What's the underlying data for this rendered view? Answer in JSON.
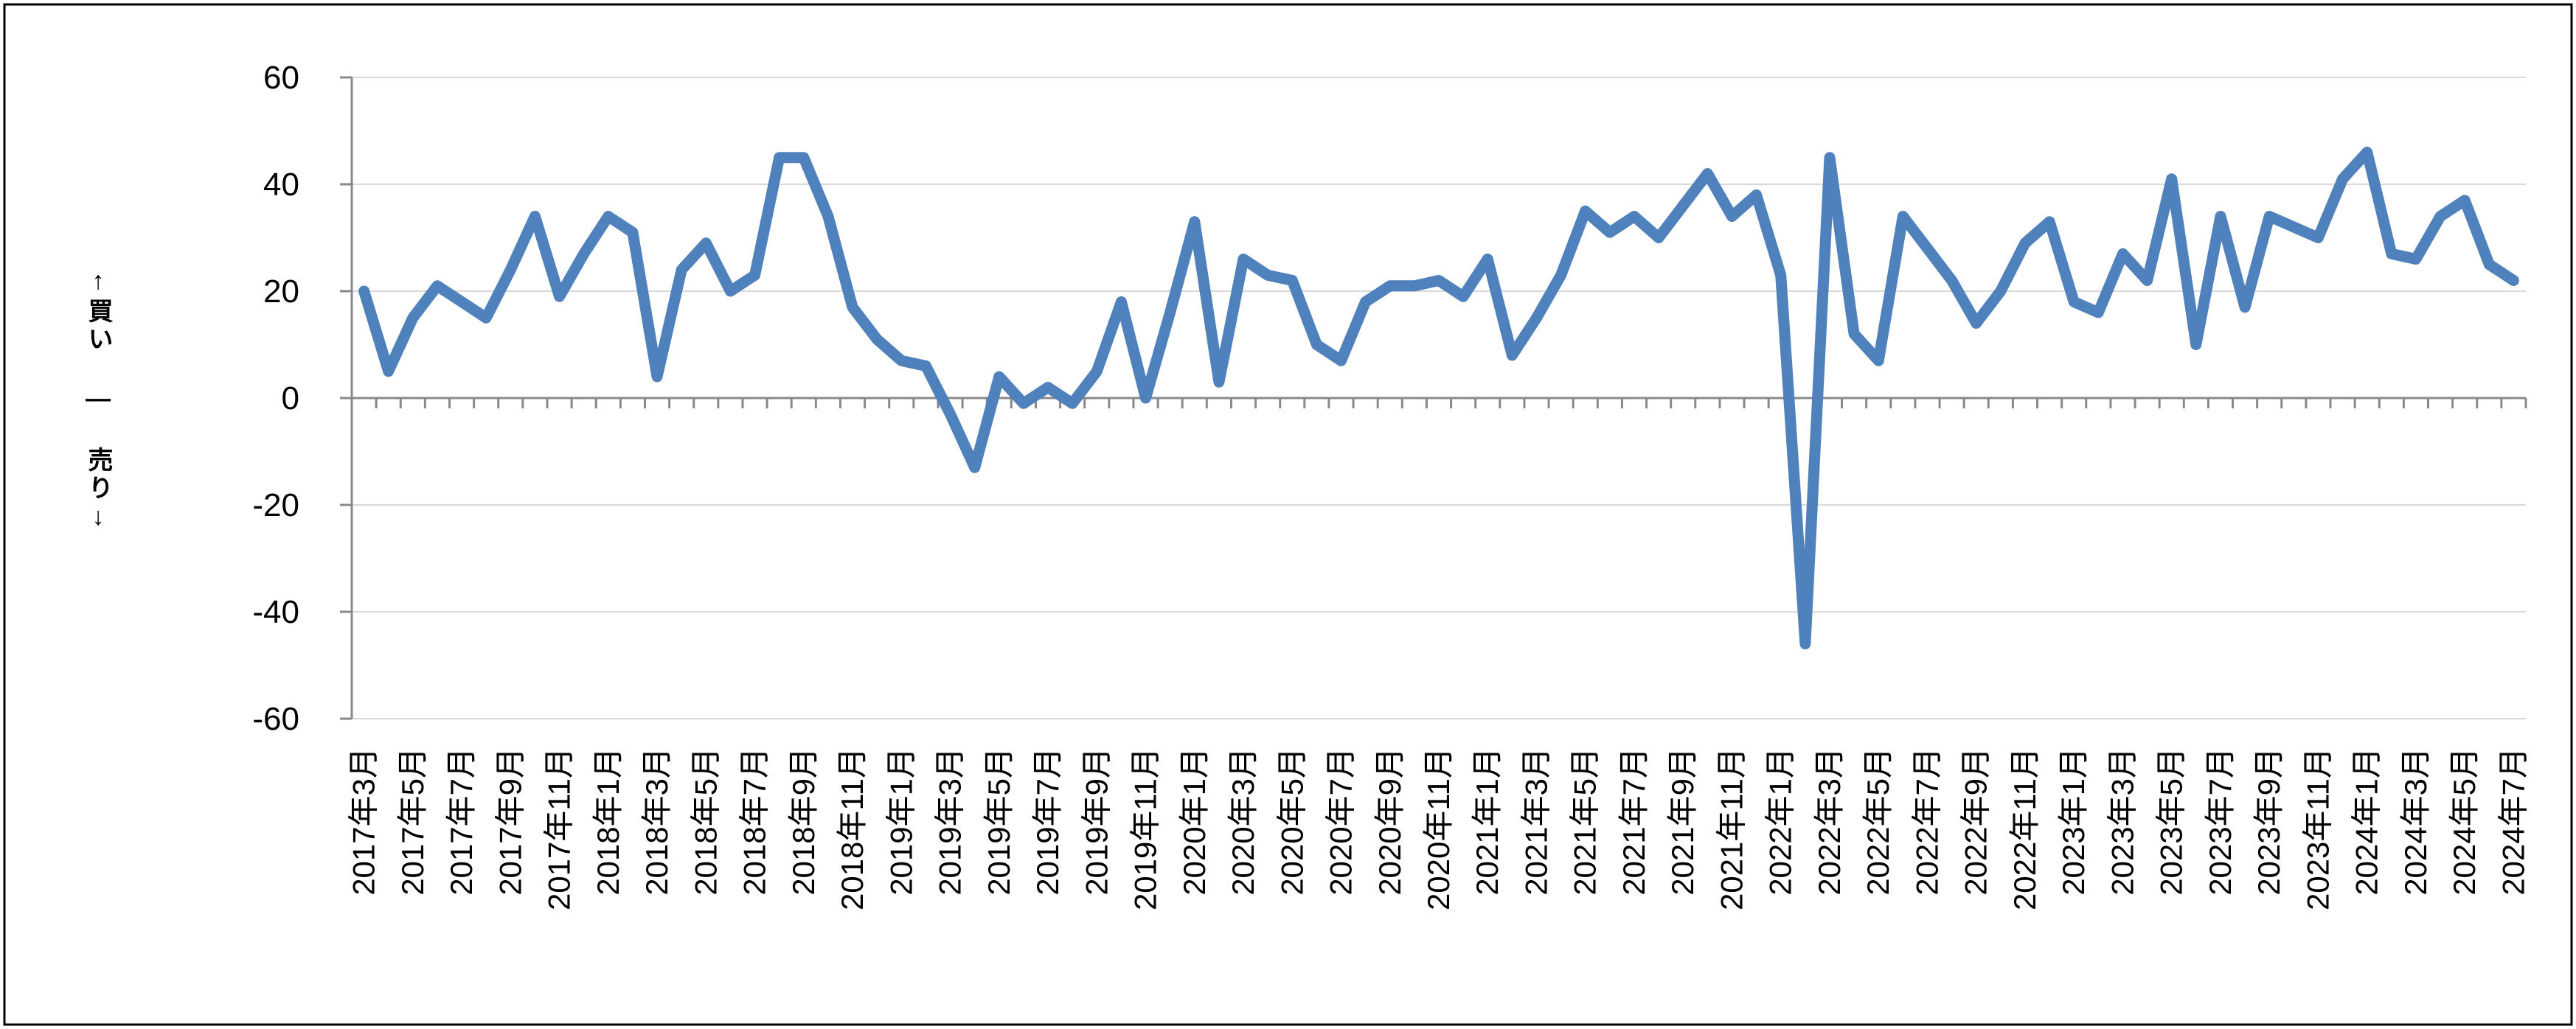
{
  "figure": {
    "background": "#ffffff",
    "border_color": "#000000"
  },
  "chart_data": {
    "type": "line",
    "title": "",
    "xlabel": "",
    "ylabel": "↑買い ― 売り↓",
    "ylim": [
      -60,
      60
    ],
    "ytick_step": 20,
    "ytick_labels": [
      "60",
      "40",
      "20",
      "0",
      "-20",
      "-40",
      "-60"
    ],
    "grid": true,
    "legend": false,
    "x_label_interval": 2,
    "colors": {
      "line": "#4F81BD",
      "gridline": "#D9D9D9",
      "axis": "#898989",
      "text": "#000000"
    },
    "x": [
      "2017年3月",
      "2017年4月",
      "2017年5月",
      "2017年6月",
      "2017年7月",
      "2017年8月",
      "2017年9月",
      "2017年10月",
      "2017年11月",
      "2017年12月",
      "2018年1月",
      "2018年2月",
      "2018年3月",
      "2018年4月",
      "2018年5月",
      "2018年6月",
      "2018年7月",
      "2018年8月",
      "2018年9月",
      "2018年10月",
      "2018年11月",
      "2018年12月",
      "2019年1月",
      "2019年2月",
      "2019年3月",
      "2019年4月",
      "2019年5月",
      "2019年6月",
      "2019年7月",
      "2019年8月",
      "2019年9月",
      "2019年10月",
      "2019年11月",
      "2019年12月",
      "2020年1月",
      "2020年2月",
      "2020年3月",
      "2020年4月",
      "2020年5月",
      "2020年6月",
      "2020年7月",
      "2020年8月",
      "2020年9月",
      "2020年10月",
      "2020年11月",
      "2020年12月",
      "2021年1月",
      "2021年2月",
      "2021年3月",
      "2021年4月",
      "2021年5月",
      "2021年6月",
      "2021年7月",
      "2021年8月",
      "2021年9月",
      "2021年10月",
      "2021年11月",
      "2021年12月",
      "2022年1月",
      "2022年2月",
      "2022年3月",
      "2022年4月",
      "2022年5月",
      "2022年6月",
      "2022年7月",
      "2022年8月",
      "2022年9月",
      "2022年10月",
      "2022年11月",
      "2022年12月",
      "2023年1月",
      "2023年2月",
      "2023年3月",
      "2023年4月",
      "2023年5月",
      "2023年6月",
      "2023年7月",
      "2023年8月",
      "2023年9月",
      "2023年10月",
      "2023年11月",
      "2023年12月",
      "2024年1月",
      "2024年2月",
      "2024年3月",
      "2024年4月",
      "2024年5月",
      "2024年6月",
      "2024年7月"
    ],
    "series": [
      {
        "color": "#4F81BD",
        "stroke_width": 15,
        "values": [
          20,
          5,
          15,
          21,
          18,
          15,
          24,
          34,
          19,
          27,
          34,
          31,
          4,
          24,
          29,
          20,
          23,
          45,
          45,
          34,
          17,
          11,
          7,
          6,
          -3,
          -13,
          4,
          -1,
          2,
          -1,
          5,
          18,
          0,
          16,
          33,
          3,
          26,
          23,
          22,
          10,
          7,
          18,
          21,
          21,
          22,
          19,
          26,
          8,
          15,
          23,
          35,
          31,
          34,
          30,
          36,
          42,
          34,
          38,
          23,
          -46,
          45,
          12,
          7,
          34,
          28,
          22,
          14,
          20,
          29,
          33,
          18,
          16,
          27,
          22,
          41,
          10,
          34,
          17,
          34,
          32,
          30,
          41,
          46,
          27,
          26,
          34,
          37,
          25,
          22
        ]
      }
    ]
  }
}
